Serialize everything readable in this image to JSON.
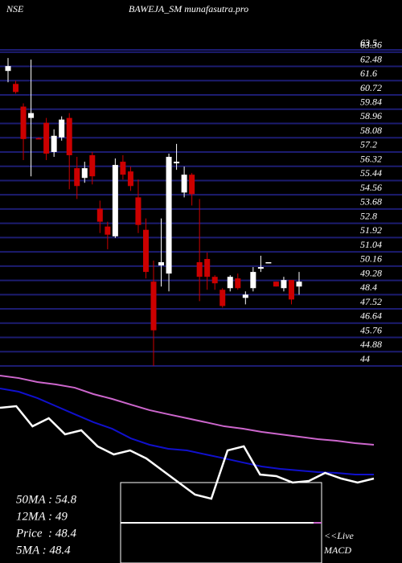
{
  "chart_data": {
    "type": "candlestick",
    "exchange": "NSE",
    "title": "BAWEJA_SM munafasutra.pro",
    "ylim": [
      44,
      63.5
    ],
    "yticks": [
      44,
      44.88,
      45.76,
      46.64,
      47.52,
      48.4,
      49.28,
      50.16,
      51.04,
      51.92,
      52.8,
      53.68,
      54.56,
      55.44,
      56.32,
      57.2,
      58.08,
      58.96,
      59.84,
      60.72,
      61.6,
      62.48,
      63.36,
      63.5
    ],
    "grid": true,
    "up_color": "#ffffff",
    "down_color": "#cc0000",
    "grid_color": "#1c1c70",
    "open": [
      62.2,
      61.4,
      60.0,
      59.3,
      58.05,
      59.0,
      57.2,
      58.1,
      59.3,
      56.2,
      55.6,
      57.0,
      53.7,
      52.6,
      52.0,
      56.6,
      56.0,
      54.4,
      52.4,
      49.2,
      50.2,
      49.7,
      56.5,
      54.7,
      55.8,
      50.4,
      50.6,
      49.5,
      48.7,
      48.8,
      49.4,
      48.2,
      48.8,
      50.0,
      50.35,
      49.2,
      48.8,
      49.3,
      48.9
    ],
    "high": [
      63.0,
      61.6,
      60.2,
      62.9,
      58.1,
      59.3,
      58.6,
      59.4,
      59.6,
      56.9,
      56.6,
      57.2,
      54.2,
      52.9,
      56.8,
      57.0,
      56.3,
      55.5,
      53.1,
      50.5,
      53.1,
      57.1,
      57.7,
      56.3,
      55.9,
      54.3,
      51.0,
      49.6,
      48.8,
      49.6,
      49.7,
      48.6,
      50.1,
      50.8,
      50.4,
      49.2,
      49.5,
      49.3,
      49.8
    ],
    "low": [
      61.5,
      60.8,
      56.7,
      55.7,
      58.0,
      56.7,
      56.9,
      57.9,
      54.9,
      54.3,
      55.3,
      55.2,
      52.2,
      51.2,
      51.9,
      55.5,
      54.8,
      52.2,
      49.4,
      44.0,
      48.9,
      48.6,
      56.1,
      54.4,
      53.9,
      48.0,
      48.7,
      48.7,
      47.6,
      48.6,
      48.7,
      47.8,
      48.6,
      49.8,
      50.35,
      48.9,
      48.6,
      47.8,
      48.4
    ],
    "close": [
      62.5,
      60.9,
      58.0,
      59.6,
      58.0,
      57.1,
      58.2,
      59.2,
      57.0,
      55.1,
      56.2,
      55.7,
      52.9,
      52.1,
      56.4,
      55.8,
      55.1,
      52.7,
      49.8,
      46.2,
      50.4,
      56.9,
      56.6,
      55.8,
      54.6,
      49.5,
      49.5,
      49.1,
      47.7,
      49.5,
      48.8,
      48.4,
      49.8,
      50.1,
      50.4,
      48.9,
      49.3,
      48.1,
      49.2
    ],
    "indicator": {
      "ylim": [
        0,
        100
      ],
      "series": [
        {
          "color": "#cc66cc",
          "values": [
            95.3,
            93.3,
            90,
            88,
            85.3,
            80,
            76,
            71.3,
            66.7,
            63.3,
            60,
            56.7,
            53.3,
            51.3,
            48.7,
            46.7,
            44.7,
            42.7,
            41.3,
            39.3,
            38
          ]
        },
        {
          "color": "#1010cc",
          "values": [
            84.7,
            82,
            76.7,
            70,
            63.3,
            56.7,
            51.3,
            43.3,
            38,
            34.7,
            33.3,
            30,
            26.7,
            23.3,
            20,
            18,
            16.7,
            15.3,
            14.7,
            13.3,
            13.3
          ]
        },
        {
          "color": "#ffffff",
          "values": [
            68.7,
            70,
            53.3,
            60,
            46.7,
            50,
            36.7,
            30,
            33.3,
            26.7,
            16.7,
            6.7,
            -3.3,
            -6.7,
            33.3,
            36.7,
            13.3,
            12,
            6.7,
            8,
            14.7,
            10,
            6.7,
            10
          ]
        }
      ]
    },
    "stats": [
      "50MA : 54.8",
      "12MA : 49",
      "Price  : 48.4",
      "5MA : 48.4"
    ],
    "notes": [
      "<<Live",
      "MACD"
    ]
  }
}
